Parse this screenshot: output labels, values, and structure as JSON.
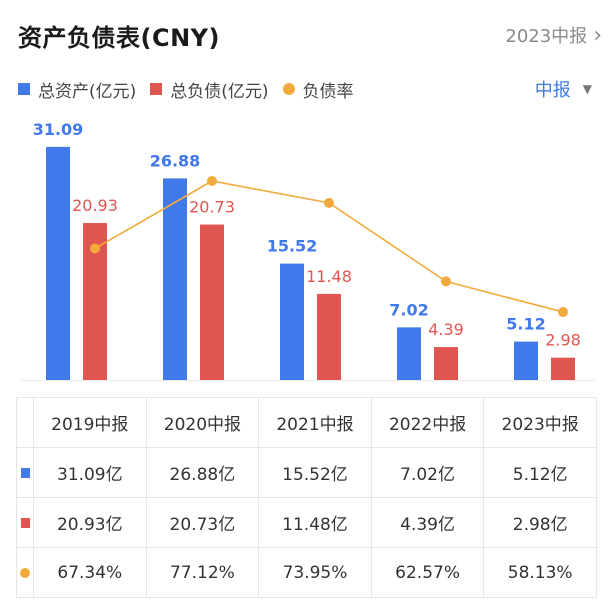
{
  "header": {
    "title": "资产负债表(CNY)",
    "period_link": "2023中报",
    "chevron": "›"
  },
  "legend": {
    "items": [
      {
        "label": "总资产(亿元)",
        "color": "#4279ea",
        "shape": "square"
      },
      {
        "label": "总负债(亿元)",
        "color": "#df5650",
        "shape": "square"
      },
      {
        "label": "负债率",
        "color": "#f2aa3c",
        "shape": "circle"
      }
    ],
    "period_select": "中报",
    "caret": "▼"
  },
  "chart_data": {
    "type": "bar",
    "categories": [
      "2019中报",
      "2020中报",
      "2021中报",
      "2022中报",
      "2023中报"
    ],
    "series": [
      {
        "name": "总资产(亿元)",
        "type": "bar",
        "color": "#4279ea",
        "values": [
          31.09,
          26.88,
          15.52,
          7.02,
          5.12
        ],
        "labels": [
          "31.09",
          "26.88",
          "15.52",
          "7.02",
          "5.12"
        ]
      },
      {
        "name": "总负债(亿元)",
        "type": "bar",
        "color": "#df5650",
        "values": [
          20.93,
          20.73,
          11.48,
          4.39,
          2.98
        ],
        "labels": [
          "20.93",
          "20.73",
          "11.48",
          "4.39",
          "2.98"
        ]
      },
      {
        "name": "负债率",
        "type": "line",
        "color": "#f2aa3c",
        "values": [
          67.34,
          77.12,
          73.95,
          62.57,
          58.13
        ],
        "unit": "%"
      }
    ],
    "title": "资产负债表(CNY)",
    "xlabel": "",
    "ylabel": "",
    "grid": false,
    "legend": "top-left"
  },
  "table": {
    "headers": [
      "2019中报",
      "2020中报",
      "2021中报",
      "2022中报",
      "2023中报"
    ],
    "rows": [
      {
        "marker": "square",
        "color": "#4279ea",
        "cells": [
          "31.09亿",
          "26.88亿",
          "15.52亿",
          "7.02亿",
          "5.12亿"
        ]
      },
      {
        "marker": "square",
        "color": "#df5650",
        "cells": [
          "20.93亿",
          "20.73亿",
          "11.48亿",
          "4.39亿",
          "2.98亿"
        ]
      },
      {
        "marker": "circle",
        "color": "#f2aa3c",
        "cells": [
          "67.34%",
          "77.12%",
          "73.95%",
          "62.57%",
          "58.13%"
        ]
      }
    ]
  }
}
